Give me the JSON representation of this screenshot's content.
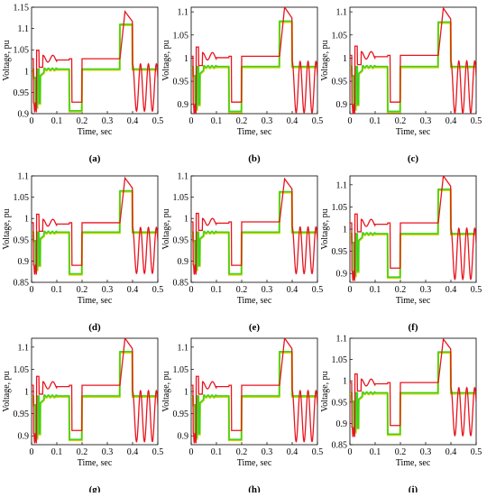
{
  "chart_data": [
    {
      "type": "line",
      "xlabel": "Time, sec",
      "ylabel": "Voltage, pu",
      "caption": "(a)",
      "xlim": [
        0,
        0.5
      ],
      "ylim": [
        0.9,
        1.15
      ],
      "xticks": [
        "0",
        "0.1",
        "0.2",
        "0.3",
        "0.4",
        "0.5"
      ],
      "yticks": [
        "0.9",
        "0.95",
        "1",
        "1.05",
        "1.1",
        "1.15"
      ],
      "base": 1.005,
      "sag": 0.907,
      "swell": 1.11,
      "red_offset": 0.024,
      "dip": 0.915,
      "series": [
        {
          "color": "#e8141e"
        },
        {
          "color": "#35d423"
        },
        {
          "color": "#d6cf00"
        }
      ]
    },
    {
      "type": "line",
      "xlabel": "Time, sec",
      "ylabel": "Voltage, pu",
      "caption": "(b)",
      "xlim": [
        0,
        0.5
      ],
      "ylim": [
        0.88,
        1.11
      ],
      "xticks": [
        "0",
        "0.1",
        "0.2",
        "0.3",
        "0.4",
        "0.5"
      ],
      "yticks": [
        "0.9",
        "0.95",
        "1",
        "1.05",
        "1.1"
      ],
      "base": 0.982,
      "sag": 0.885,
      "swell": 1.08,
      "red_offset": 0.022,
      "dip": 0.89,
      "series": [
        {
          "color": "#e8141e"
        },
        {
          "color": "#35d423"
        },
        {
          "color": "#d6cf00"
        }
      ]
    },
    {
      "type": "line",
      "xlabel": "Time, sec",
      "ylabel": "Voltage, pu",
      "caption": "(c)",
      "xlim": [
        0,
        0.5
      ],
      "ylim": [
        0.88,
        1.11
      ],
      "xticks": [
        "0",
        "0.1",
        "0.2",
        "0.3",
        "0.4",
        "0.5"
      ],
      "yticks": [
        "0.9",
        "0.95",
        "1",
        "1.05",
        "1.1"
      ],
      "base": 0.982,
      "sag": 0.885,
      "swell": 1.078,
      "red_offset": 0.024,
      "dip": 0.89,
      "series": [
        {
          "color": "#e8141e"
        },
        {
          "color": "#35d423"
        },
        {
          "color": "#d6cf00"
        }
      ]
    },
    {
      "type": "line",
      "xlabel": "Time, sec",
      "ylabel": "Voltage, pu",
      "caption": "(d)",
      "xlim": [
        0,
        0.5
      ],
      "ylim": [
        0.85,
        1.1
      ],
      "xticks": [
        "0",
        "0.1",
        "0.2",
        "0.3",
        "0.4",
        "0.5"
      ],
      "yticks": [
        "0.85",
        "0.9",
        "0.95",
        "1",
        "1.05",
        "1.1"
      ],
      "base": 0.968,
      "sag": 0.87,
      "swell": 1.065,
      "red_offset": 0.022,
      "dip": 0.88,
      "series": [
        {
          "color": "#e8141e"
        },
        {
          "color": "#35d423"
        },
        {
          "color": "#d6cf00"
        }
      ]
    },
    {
      "type": "line",
      "xlabel": "Time, sec",
      "ylabel": "Voltage, pu",
      "caption": "(e)",
      "xlim": [
        0,
        0.5
      ],
      "ylim": [
        0.85,
        1.1
      ],
      "xticks": [
        "0",
        "0.1",
        "0.2",
        "0.3",
        "0.4",
        "0.5"
      ],
      "yticks": [
        "0.85",
        "0.9",
        "0.95",
        "1",
        "1.05",
        "1.1"
      ],
      "base": 0.968,
      "sag": 0.87,
      "swell": 1.063,
      "red_offset": 0.024,
      "dip": 0.88,
      "series": [
        {
          "color": "#e8141e"
        },
        {
          "color": "#35d423"
        },
        {
          "color": "#d6cf00"
        }
      ]
    },
    {
      "type": "line",
      "xlabel": "Time, sec",
      "ylabel": "Voltage, pu",
      "caption": "(f)",
      "xlim": [
        0,
        0.5
      ],
      "ylim": [
        0.88,
        1.12
      ],
      "xticks": [
        "0",
        "0.1",
        "0.2",
        "0.3",
        "0.4",
        "0.5"
      ],
      "yticks": [
        "0.9",
        "0.95",
        "1",
        "1.05",
        "1.1"
      ],
      "base": 0.99,
      "sag": 0.892,
      "swell": 1.09,
      "red_offset": 0.024,
      "dip": 0.895,
      "series": [
        {
          "color": "#e8141e"
        },
        {
          "color": "#35d423"
        },
        {
          "color": "#d6cf00"
        }
      ]
    },
    {
      "type": "line",
      "xlabel": "Time, sec",
      "ylabel": "Voltage, pu",
      "caption": "(g)",
      "xlim": [
        0,
        0.5
      ],
      "ylim": [
        0.88,
        1.12
      ],
      "xticks": [
        "0",
        "0.1",
        "0.2",
        "0.3",
        "0.4",
        "0.5"
      ],
      "yticks": [
        "0.9",
        "0.95",
        "1",
        "1.05",
        "1.1"
      ],
      "base": 0.99,
      "sag": 0.892,
      "swell": 1.09,
      "red_offset": 0.024,
      "dip": 0.895,
      "series": [
        {
          "color": "#e8141e"
        },
        {
          "color": "#35d423"
        },
        {
          "color": "#d6cf00"
        }
      ]
    },
    {
      "type": "line",
      "xlabel": "Time, sec",
      "ylabel": "Voltage, pu",
      "caption": "(h)",
      "xlim": [
        0,
        0.5
      ],
      "ylim": [
        0.88,
        1.12
      ],
      "xticks": [
        "0",
        "0.1",
        "0.2",
        "0.3",
        "0.4",
        "0.5"
      ],
      "yticks": [
        "0.9",
        "0.95",
        "1",
        "1.05",
        "1.1"
      ],
      "base": 0.99,
      "sag": 0.892,
      "swell": 1.09,
      "red_offset": 0.024,
      "dip": 0.895,
      "series": [
        {
          "color": "#e8141e"
        },
        {
          "color": "#35d423"
        },
        {
          "color": "#d6cf00"
        }
      ]
    },
    {
      "type": "line",
      "xlabel": "Time, sec",
      "ylabel": "Voltage, pu",
      "caption": "(i)",
      "xlim": [
        0,
        0.5
      ],
      "ylim": [
        0.85,
        1.1
      ],
      "xticks": [
        "0",
        "0.1",
        "0.2",
        "0.3",
        "0.4",
        "0.5"
      ],
      "yticks": [
        "0.85",
        "0.9",
        "0.95",
        "1",
        "1.05",
        "1.1"
      ],
      "base": 0.972,
      "sag": 0.875,
      "swell": 1.068,
      "red_offset": 0.024,
      "dip": 0.88,
      "series": [
        {
          "color": "#e8141e"
        },
        {
          "color": "#35d423"
        },
        {
          "color": "#d6cf00"
        }
      ]
    }
  ]
}
